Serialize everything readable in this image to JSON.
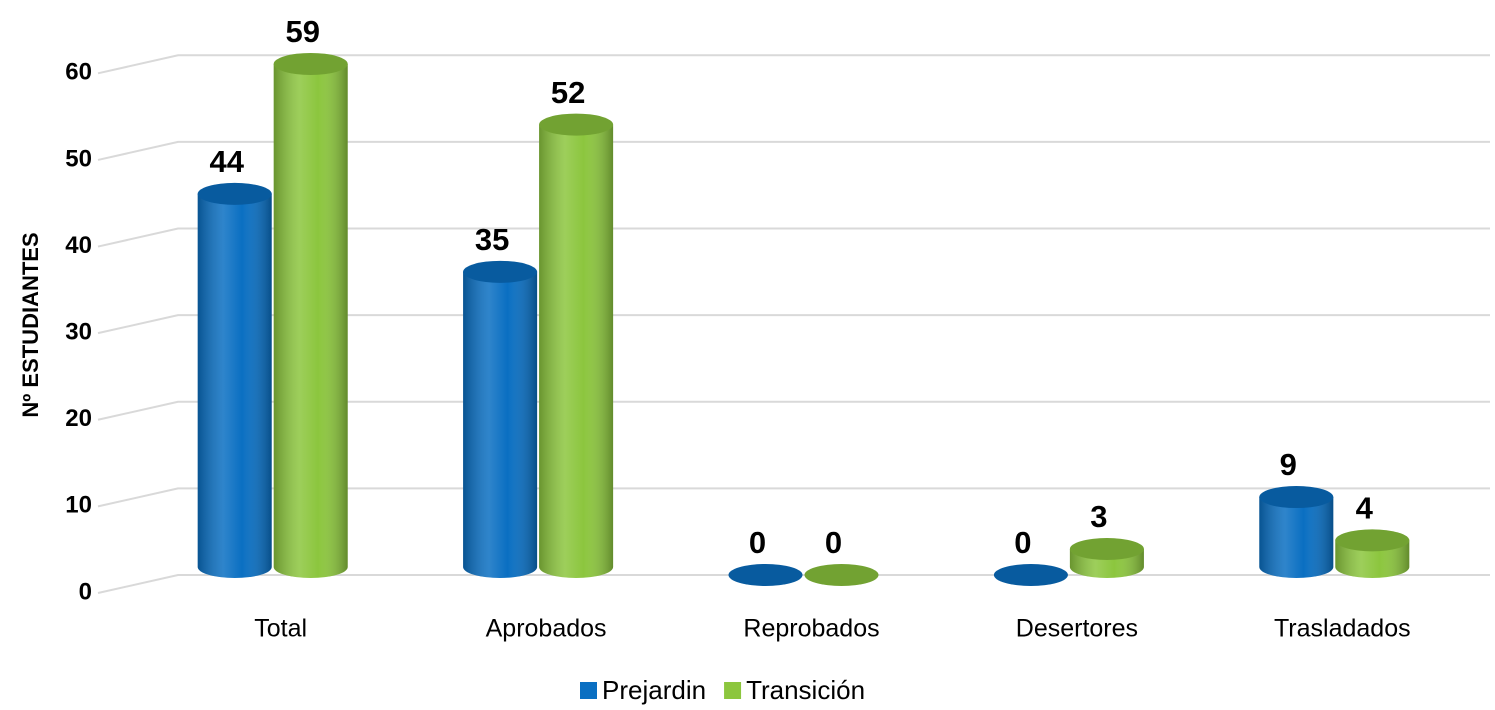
{
  "chart_data": {
    "type": "bar",
    "y_label": "Nº ESTUDIANTES",
    "categories": [
      "Total",
      "Aprobados",
      "Reprobados",
      "Desertores",
      "Trasladados"
    ],
    "series": [
      {
        "name": "Prejardin",
        "color": "#0a6fc2",
        "values": [
          44,
          35,
          0,
          0,
          9
        ]
      },
      {
        "name": "Transición",
        "color": "#8cc63e",
        "values": [
          59,
          52,
          0,
          3,
          4
        ]
      }
    ],
    "ylim": [
      0,
      65
    ],
    "yticks": [
      0,
      10,
      20,
      30,
      40,
      50,
      60
    ],
    "grid": true,
    "legend": "bottom"
  }
}
